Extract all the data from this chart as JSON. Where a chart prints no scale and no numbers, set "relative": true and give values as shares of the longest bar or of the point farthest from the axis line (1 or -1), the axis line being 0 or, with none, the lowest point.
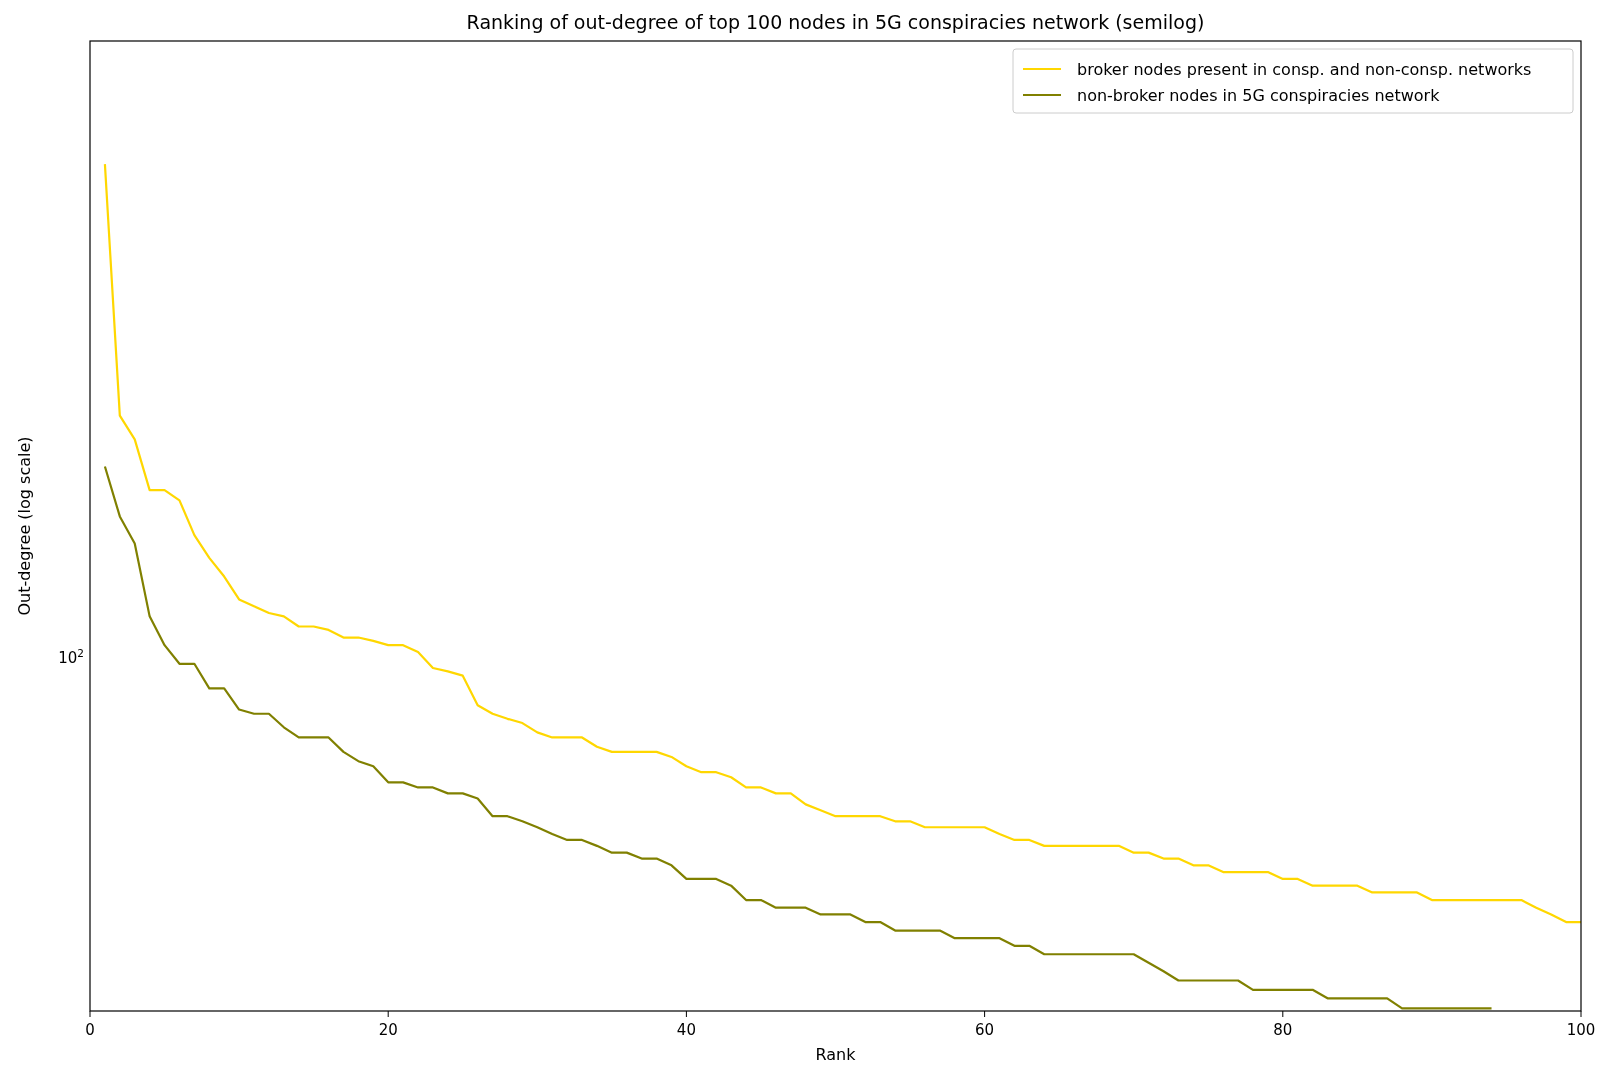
{
  "chart_data": {
    "type": "line",
    "title": "Ranking of out-degree of top 100 nodes in 5G conspiracies network (semilog)",
    "xlabel": "Rank",
    "ylabel": "Out-degree (log scale)",
    "relative": true,
    "grid": false,
    "legend": "top right",
    "marker": "none",
    "line_style": "solid",
    "annotations": [
      "10$^{2}$"
    ],
    "xlim": [
      0,
      100
    ],
    "xticks": [
      0,
      20,
      40,
      60,
      80,
      100
    ],
    "x": [
      1,
      2,
      3,
      4,
      5,
      6,
      7,
      8,
      9,
      10,
      11,
      12,
      13,
      14,
      15,
      16,
      17,
      18,
      19,
      20,
      21,
      22,
      23,
      24,
      25,
      26,
      27,
      28,
      29,
      30,
      31,
      32,
      33,
      34,
      35,
      36,
      37,
      38,
      39,
      40,
      41,
      42,
      43,
      44,
      45,
      46,
      47,
      48,
      49,
      50,
      51,
      52,
      53,
      54,
      55,
      56,
      57,
      58,
      59,
      60,
      61,
      62,
      63,
      64,
      65,
      66,
      67,
      68,
      69,
      70,
      71,
      72,
      73,
      74,
      75,
      76,
      77,
      78,
      79,
      80,
      81,
      82,
      83,
      84,
      85,
      86,
      87,
      88,
      89,
      90,
      91,
      92,
      93,
      94,
      95,
      96,
      97,
      98,
      99,
      100
    ],
    "series": [
      {
        "name": "broker nodes present in consp. and non-consp. networks",
        "color": "#ffd700",
        "values": [
          1,
          0.703,
          0.675,
          0.615,
          0.615,
          0.603,
          0.562,
          0.535,
          0.513,
          0.486,
          0.478,
          0.47,
          0.466,
          0.454,
          0.454,
          0.45,
          0.441,
          0.441,
          0.437,
          0.432,
          0.432,
          0.424,
          0.405,
          0.401,
          0.396,
          0.361,
          0.351,
          0.345,
          0.34,
          0.329,
          0.323,
          0.323,
          0.323,
          0.312,
          0.306,
          0.306,
          0.306,
          0.306,
          0.3,
          0.289,
          0.282,
          0.282,
          0.276,
          0.264,
          0.264,
          0.257,
          0.257,
          0.244,
          0.237,
          0.23,
          0.23,
          0.23,
          0.23,
          0.224,
          0.224,
          0.217,
          0.217,
          0.217,
          0.217,
          0.217,
          0.209,
          0.202,
          0.202,
          0.195,
          0.195,
          0.195,
          0.195,
          0.195,
          0.195,
          0.187,
          0.187,
          0.18,
          0.18,
          0.172,
          0.172,
          0.164,
          0.164,
          0.164,
          0.164,
          0.156,
          0.156,
          0.148,
          0.148,
          0.148,
          0.148,
          0.14,
          0.14,
          0.14,
          0.14,
          0.131,
          0.131,
          0.131,
          0.131,
          0.131,
          0.131,
          0.131,
          0.122,
          0.114,
          0.105,
          0.105
        ]
      },
      {
        "name": "non-broker nodes in 5G conspiracies network",
        "color": "#808000",
        "values": [
          0.643,
          0.584,
          0.552,
          0.466,
          0.432,
          0.41,
          0.41,
          0.381,
          0.381,
          0.356,
          0.351,
          0.351,
          0.335,
          0.323,
          0.323,
          0.323,
          0.306,
          0.295,
          0.289,
          0.27,
          0.27,
          0.264,
          0.264,
          0.257,
          0.257,
          0.251,
          0.23,
          0.23,
          0.224,
          0.217,
          0.209,
          0.202,
          0.202,
          0.195,
          0.187,
          0.187,
          0.18,
          0.18,
          0.172,
          0.156,
          0.156,
          0.156,
          0.148,
          0.131,
          0.131,
          0.122,
          0.122,
          0.122,
          0.114,
          0.114,
          0.114,
          0.105,
          0.105,
          0.095,
          0.095,
          0.095,
          0.095,
          0.086,
          0.086,
          0.086,
          0.086,
          0.077,
          0.077,
          0.067,
          0.067,
          0.067,
          0.067,
          0.067,
          0.067,
          0.067,
          0.057,
          0.047,
          0.036,
          0.036,
          0.036,
          0.036,
          0.036,
          0.025,
          0.025,
          0.025,
          0.025,
          0.025,
          0.015,
          0.015,
          0.015,
          0.015,
          0.015,
          0.003,
          0.003,
          0.003,
          0.003,
          0.003,
          0.003,
          0.003,
          null,
          null,
          null,
          null,
          null,
          null
        ]
      }
    ]
  }
}
